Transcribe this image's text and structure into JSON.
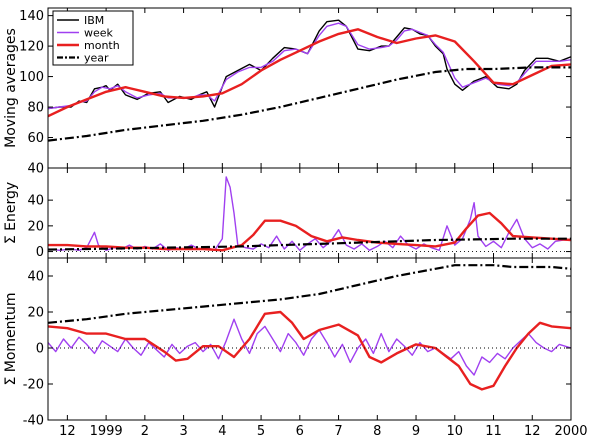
{
  "chart_data": [
    {
      "type": "line",
      "ylabel": "Moving averages",
      "ylim": [
        40,
        145
      ],
      "yticks": [
        40,
        60,
        80,
        100,
        120,
        140
      ],
      "xlim": [
        0,
        13.5
      ],
      "x_tick_labels": [
        "12",
        "1999",
        "2",
        "3",
        "4",
        "5",
        "6",
        "7",
        "8",
        "9",
        "10",
        "11",
        "12",
        "2000"
      ],
      "legend": {
        "placement": "top-left",
        "entries": [
          "IBM",
          "week",
          "month",
          "year"
        ]
      },
      "series": [
        {
          "name": "IBM",
          "style": "solid",
          "color": "#000000",
          "x": [
            0,
            0.3,
            0.6,
            0.8,
            1.0,
            1.2,
            1.4,
            1.5,
            1.6,
            1.8,
            2.0,
            2.3,
            2.6,
            2.9,
            3.1,
            3.4,
            3.7,
            3.9,
            4.1,
            4.3,
            4.6,
            4.9,
            5.2,
            5.5,
            5.8,
            6.1,
            6.4,
            6.7,
            7.0,
            7.2,
            7.5,
            7.7,
            8.0,
            8.3,
            8.6,
            8.8,
            9.0,
            9.2,
            9.4,
            9.6,
            9.8,
            10.0,
            10.2,
            10.3,
            10.5,
            10.7,
            11.0,
            11.3,
            11.6,
            11.9,
            12.1,
            12.3,
            12.6,
            12.9,
            13.2,
            13.5
          ],
          "y": [
            79,
            80,
            80,
            84,
            83,
            92,
            93,
            94,
            91,
            95,
            88,
            85,
            89,
            90,
            83,
            87,
            85,
            88,
            90,
            80,
            100,
            104,
            108,
            104,
            112,
            119,
            118,
            115,
            130,
            136,
            137,
            133,
            118,
            117,
            120,
            120,
            126,
            132,
            131,
            128,
            127,
            120,
            115,
            105,
            95,
            91,
            97,
            100,
            93,
            92,
            95,
            104,
            112,
            112,
            110,
            113
          ]
        },
        {
          "name": "week",
          "style": "solid",
          "color": "#a040f0",
          "x": [
            0,
            0.3,
            0.6,
            0.8,
            1.0,
            1.2,
            1.4,
            1.6,
            1.8,
            2.0,
            2.3,
            2.6,
            2.9,
            3.1,
            3.4,
            3.7,
            3.9,
            4.1,
            4.3,
            4.6,
            4.9,
            5.2,
            5.5,
            5.8,
            6.1,
            6.4,
            6.7,
            7.0,
            7.2,
            7.5,
            7.7,
            8.0,
            8.3,
            8.6,
            8.8,
            9.0,
            9.2,
            9.4,
            9.6,
            9.8,
            10.0,
            10.2,
            10.5,
            10.7,
            11.0,
            11.3,
            11.6,
            11.9,
            12.1,
            12.3,
            12.6,
            12.9,
            13.2,
            13.5
          ],
          "y": [
            79,
            80,
            81,
            83,
            84,
            90,
            93,
            92,
            94,
            90,
            86,
            88,
            89,
            86,
            86,
            86,
            88,
            88,
            84,
            98,
            103,
            106,
            106,
            110,
            117,
            118,
            115,
            127,
            133,
            135,
            133,
            121,
            118,
            119,
            120,
            124,
            130,
            131,
            129,
            127,
            121,
            116,
            99,
            93,
            96,
            99,
            95,
            94,
            96,
            102,
            110,
            110,
            110,
            111
          ]
        },
        {
          "name": "month",
          "style": "solid",
          "color": "#e82020",
          "x": [
            0,
            0.5,
            1.0,
            1.5,
            2.0,
            2.5,
            3.0,
            3.5,
            4.0,
            4.5,
            5.0,
            5.5,
            6.0,
            6.5,
            7.0,
            7.5,
            8.0,
            8.5,
            9.0,
            9.5,
            10.0,
            10.5,
            11.0,
            11.5,
            12.0,
            12.5,
            13.0,
            13.5
          ],
          "y": [
            74,
            80,
            85,
            90,
            93,
            90,
            87,
            86,
            87,
            89,
            95,
            104,
            111,
            117,
            123,
            128,
            131,
            126,
            122,
            125,
            127,
            123,
            110,
            96,
            95,
            101,
            107,
            108
          ]
        },
        {
          "name": "year",
          "style": "dashdot",
          "color": "#000000",
          "x": [
            0,
            1,
            2,
            3,
            4,
            5,
            6,
            7,
            8,
            9,
            10,
            10.8,
            11.5,
            12.5,
            13.5
          ],
          "y": [
            58,
            61,
            65,
            68,
            71,
            75,
            80,
            86,
            92,
            98,
            103,
            105,
            105,
            106,
            106
          ]
        }
      ]
    },
    {
      "type": "line",
      "ylabel": "Σ Energy",
      "ylim": [
        -5,
        65
      ],
      "yticks": [
        0,
        20,
        40
      ],
      "xlim": [
        0,
        13.5
      ],
      "series": [
        {
          "name": "week",
          "style": "solid",
          "color": "#a040f0",
          "x": [
            0,
            0.3,
            0.6,
            0.8,
            1.0,
            1.2,
            1.3,
            1.5,
            1.7,
            1.9,
            2.1,
            2.3,
            2.5,
            2.7,
            2.9,
            3.1,
            3.3,
            3.5,
            3.7,
            3.9,
            4.1,
            4.3,
            4.5,
            4.6,
            4.7,
            4.8,
            4.9,
            5.1,
            5.3,
            5.5,
            5.7,
            5.9,
            6.1,
            6.3,
            6.5,
            6.7,
            6.9,
            7.1,
            7.3,
            7.5,
            7.7,
            7.9,
            8.1,
            8.3,
            8.5,
            8.7,
            8.9,
            9.1,
            9.3,
            9.5,
            9.7,
            9.9,
            10.1,
            10.3,
            10.5,
            10.7,
            10.9,
            11.0,
            11.1,
            11.3,
            11.5,
            11.7,
            11.9,
            12.1,
            12.3,
            12.5,
            12.7,
            12.9,
            13.1,
            13.3,
            13.5
          ],
          "y": [
            2,
            1,
            2,
            1,
            3,
            15,
            5,
            1,
            3,
            2,
            5,
            2,
            4,
            2,
            6,
            1,
            3,
            2,
            5,
            2,
            3,
            1,
            10,
            58,
            50,
            30,
            5,
            3,
            2,
            6,
            3,
            12,
            2,
            8,
            1,
            6,
            10,
            3,
            8,
            17,
            5,
            2,
            6,
            1,
            4,
            8,
            3,
            12,
            5,
            2,
            6,
            3,
            1,
            20,
            5,
            10,
            25,
            38,
            12,
            4,
            8,
            3,
            15,
            25,
            10,
            3,
            6,
            2,
            8,
            9,
            9
          ]
        },
        {
          "name": "month",
          "style": "solid",
          "color": "#e82020",
          "x": [
            0,
            0.5,
            1.0,
            1.5,
            2.0,
            2.5,
            3.0,
            3.5,
            4.0,
            4.5,
            5.0,
            5.3,
            5.6,
            6.0,
            6.4,
            6.8,
            7.2,
            7.6,
            8.0,
            8.5,
            9.0,
            9.5,
            10.0,
            10.5,
            10.8,
            11.1,
            11.4,
            11.7,
            12.0,
            12.5,
            13.0,
            13.5
          ],
          "y": [
            5,
            5,
            4,
            4,
            3,
            3,
            2,
            2,
            2,
            1,
            5,
            13,
            24,
            24,
            20,
            12,
            8,
            11,
            9,
            7,
            6,
            5,
            4,
            7,
            18,
            28,
            30,
            22,
            12,
            11,
            10,
            9
          ]
        },
        {
          "name": "year",
          "style": "dashdot",
          "color": "#000000",
          "x": [
            0,
            1,
            2,
            3,
            4,
            5,
            6,
            7,
            8,
            9,
            10,
            11,
            12,
            13,
            13.5
          ],
          "y": [
            1.5,
            2,
            2.5,
            3,
            3.5,
            4,
            5,
            6,
            7,
            8,
            9,
            9.5,
            10,
            10,
            10
          ]
        },
        {
          "name": "zero",
          "style": "dotted",
          "color": "#000000",
          "x": [
            0,
            13.5
          ],
          "y": [
            0,
            0
          ]
        }
      ]
    },
    {
      "type": "line",
      "ylabel": "Σ Momentum",
      "ylim": [
        -40,
        50
      ],
      "yticks": [
        -40,
        -20,
        0,
        20,
        40
      ],
      "xlim": [
        0,
        13.5
      ],
      "series": [
        {
          "name": "week",
          "style": "solid",
          "color": "#a040f0",
          "x": [
            0,
            0.2,
            0.4,
            0.6,
            0.8,
            1.0,
            1.2,
            1.4,
            1.6,
            1.8,
            2.0,
            2.2,
            2.4,
            2.6,
            2.8,
            3.0,
            3.2,
            3.4,
            3.6,
            3.8,
            4.0,
            4.2,
            4.4,
            4.6,
            4.8,
            5.0,
            5.2,
            5.4,
            5.6,
            5.8,
            6.0,
            6.2,
            6.4,
            6.6,
            6.8,
            7.0,
            7.2,
            7.4,
            7.6,
            7.8,
            8.0,
            8.2,
            8.4,
            8.6,
            8.8,
            9.0,
            9.2,
            9.4,
            9.6,
            9.8,
            10.0,
            10.2,
            10.4,
            10.6,
            10.8,
            11.0,
            11.2,
            11.4,
            11.6,
            11.8,
            12.0,
            12.2,
            12.4,
            12.6,
            12.8,
            13.0,
            13.2,
            13.5
          ],
          "y": [
            3,
            -2,
            5,
            0,
            6,
            2,
            -3,
            4,
            1,
            -2,
            5,
            0,
            -4,
            3,
            -1,
            -5,
            2,
            -3,
            1,
            3,
            -2,
            2,
            -6,
            4,
            16,
            5,
            -3,
            8,
            12,
            5,
            -2,
            8,
            3,
            -4,
            5,
            10,
            3,
            -5,
            2,
            -8,
            0,
            5,
            -3,
            8,
            -2,
            5,
            1,
            -4,
            3,
            -2,
            0,
            -3,
            -6,
            -2,
            -10,
            -15,
            -5,
            -8,
            -3,
            -6,
            0,
            4,
            8,
            3,
            0,
            -2,
            2,
            0
          ]
        },
        {
          "name": "month",
          "style": "solid",
          "color": "#e82020",
          "x": [
            0,
            0.5,
            1.0,
            1.5,
            2.0,
            2.5,
            3.0,
            3.3,
            3.6,
            4.0,
            4.4,
            4.8,
            5.2,
            5.6,
            6.0,
            6.3,
            6.6,
            7.0,
            7.5,
            8.0,
            8.3,
            8.6,
            9.0,
            9.5,
            10.0,
            10.3,
            10.6,
            10.9,
            11.2,
            11.5,
            11.8,
            12.1,
            12.4,
            12.7,
            13.0,
            13.5
          ],
          "y": [
            12,
            11,
            8,
            8,
            5,
            5,
            -2,
            -7,
            -6,
            1,
            1,
            -5,
            5,
            19,
            20,
            14,
            5,
            10,
            13,
            7,
            -5,
            -8,
            -3,
            2,
            0,
            -5,
            -10,
            -20,
            -23,
            -21,
            -10,
            0,
            8,
            14,
            12,
            11
          ]
        },
        {
          "name": "year",
          "style": "dashdot",
          "color": "#000000",
          "x": [
            0,
            1,
            2,
            3,
            4,
            5,
            6,
            7,
            8,
            9,
            10,
            10.5,
            11,
            11.5,
            12,
            13,
            13.5
          ],
          "y": [
            14,
            16,
            19,
            21,
            23,
            25,
            27,
            30,
            35,
            40,
            44,
            46,
            46,
            46,
            45,
            45,
            44
          ]
        },
        {
          "name": "zero",
          "style": "dotted",
          "color": "#000000",
          "x": [
            0,
            13.5
          ],
          "y": [
            0,
            0
          ]
        }
      ]
    }
  ],
  "colors": {
    "IBM": "#000000",
    "week": "#a040f0",
    "month": "#e82020",
    "year": "#000000"
  }
}
